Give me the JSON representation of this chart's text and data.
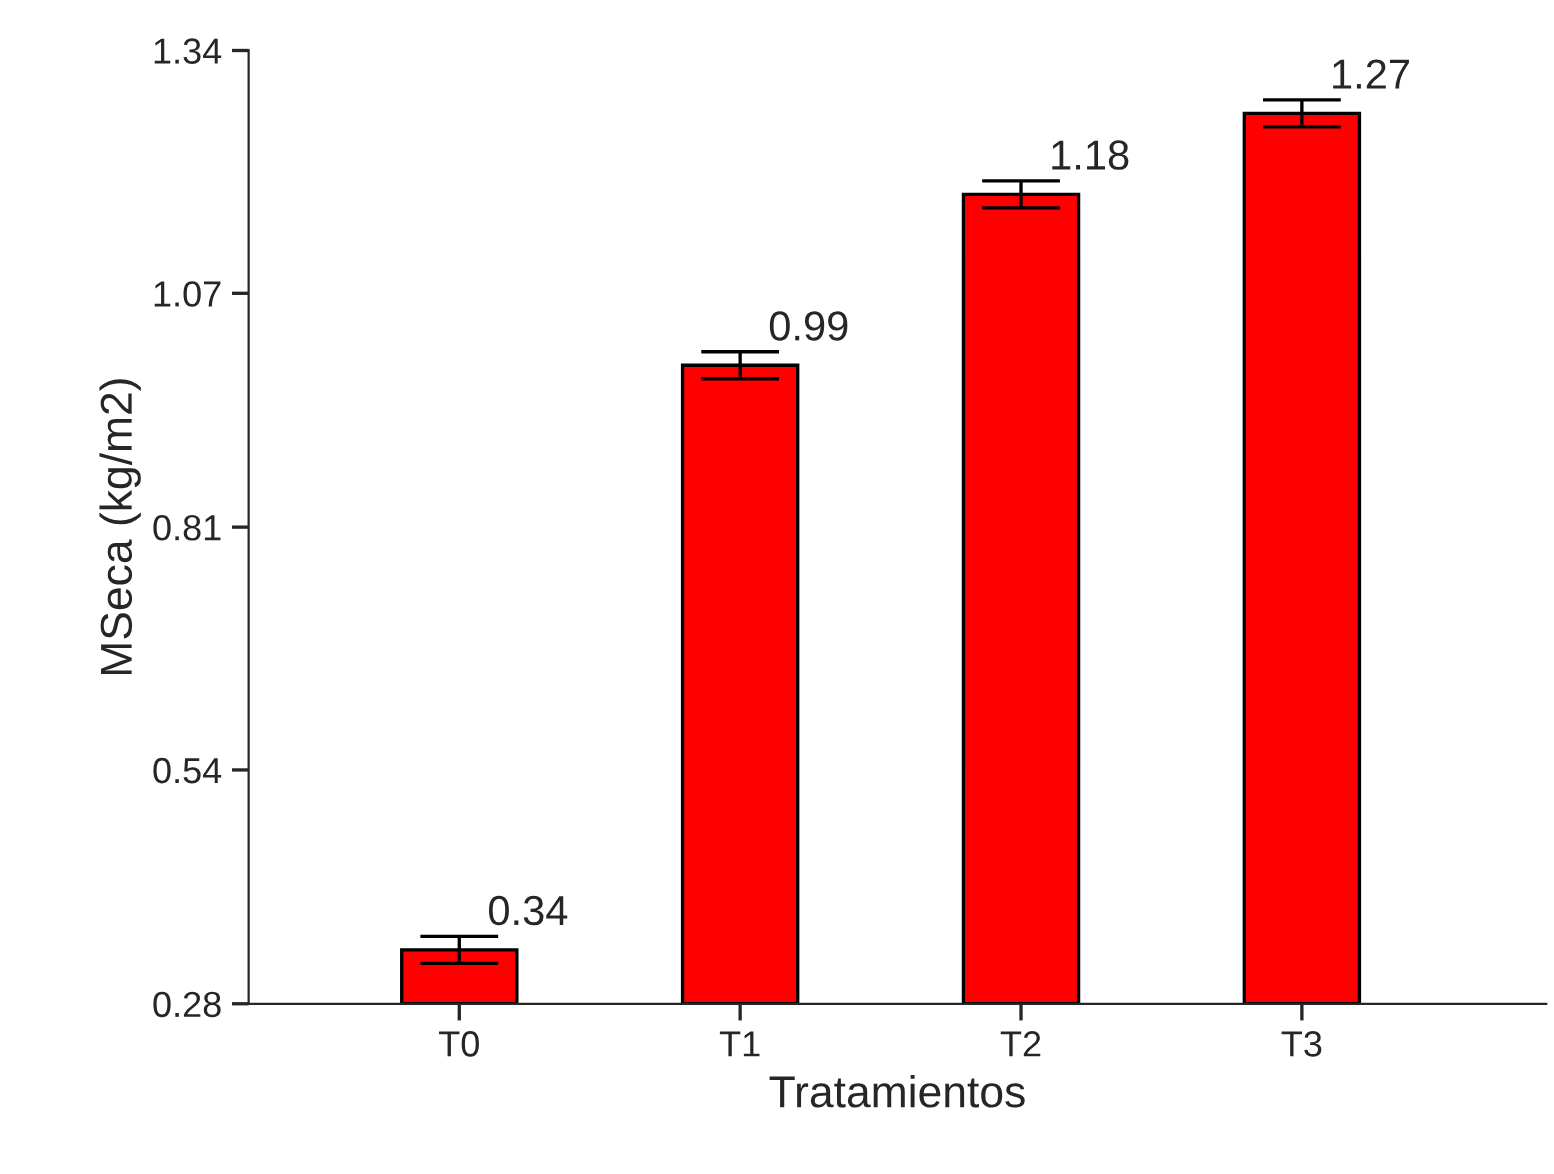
{
  "chart_data": {
    "type": "bar",
    "xlabel": "Tratamientos",
    "ylabel": "MSeca (kg/m2)",
    "categories": [
      "T0",
      "T1",
      "T2",
      "T3"
    ],
    "values": [
      0.34,
      0.99,
      1.18,
      1.27
    ],
    "errors": [
      0.015,
      0.015,
      0.015,
      0.015
    ],
    "color": "#ff0000",
    "ylim": [
      0.28,
      1.34
    ],
    "yticks": [
      0.28,
      0.54,
      0.81,
      1.07,
      1.34
    ],
    "data_labels": true,
    "grid": false,
    "legend": false
  }
}
